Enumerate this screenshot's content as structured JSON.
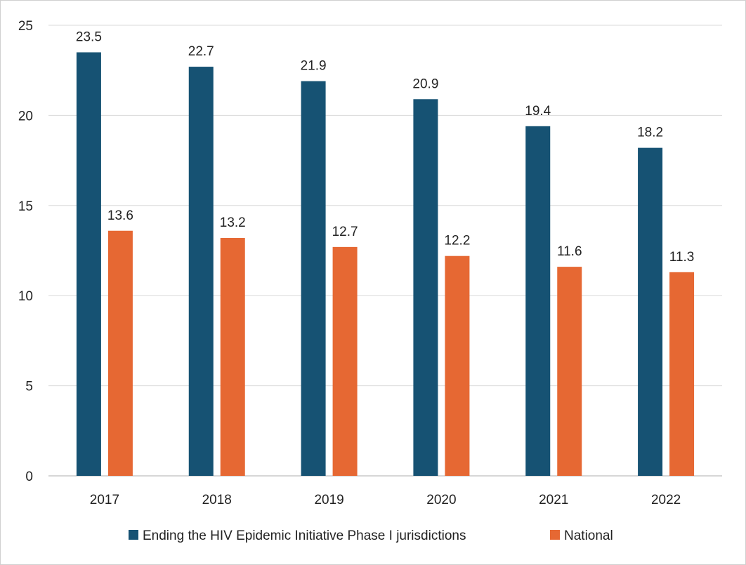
{
  "chart_data": {
    "type": "bar",
    "title": "",
    "xlabel": "",
    "ylabel": "",
    "categories": [
      "2017",
      "2018",
      "2019",
      "2020",
      "2021",
      "2022"
    ],
    "ylim": [
      0,
      25
    ],
    "yticks": [
      0,
      5,
      10,
      15,
      20,
      25
    ],
    "grid": true,
    "legend_position": "bottom",
    "series": [
      {
        "name": "Ending the HIV Epidemic Initiative Phase I jurisdictions",
        "color": "#165273",
        "values": [
          23.5,
          22.7,
          21.9,
          20.9,
          19.4,
          18.2
        ]
      },
      {
        "name": "National",
        "color": "#E66833",
        "values": [
          13.6,
          13.2,
          12.7,
          12.2,
          11.6,
          11.3
        ]
      }
    ]
  }
}
